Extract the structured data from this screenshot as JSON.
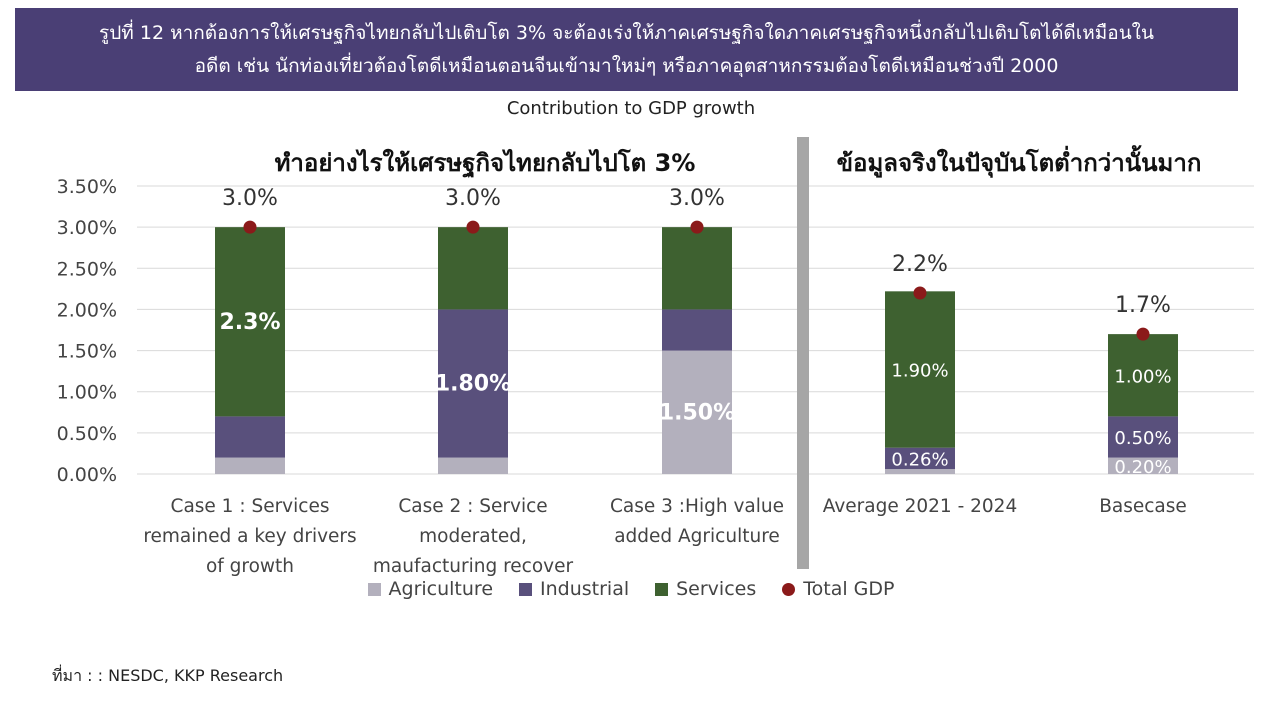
{
  "header": {
    "line1": "รูปที่ 12 หากต้องการให้เศรษฐกิจไทยกลับไปเติบโต 3% จะต้องเร่งให้ภาคเศรษฐกิจใดภาคเศรษฐกิจหนึ่งกลับไปเติบโตได้ดีเหมือนใน",
    "line2": "อดีต เช่น นักท่องเที่ยวต้องโตดีเหมือนตอนจีนเข้ามาใหม่ๆ หรือภาคอุตสาหกรรมต้องโตดีเหมือนช่วงปี 2000",
    "bg_color": "#4a3f75"
  },
  "source": "ที่มา : : NESDC, KKP Research",
  "chart_data": {
    "type": "bar",
    "stacked": true,
    "title": "Contribution to GDP growth",
    "panel_titles": {
      "left": "ทำอย่างไรให้เศรษฐกิจไทยกลับไปโต 3%",
      "right": "ข้อมูลจริงในปัจุบันโตต่ำกว่านั้นมาก"
    },
    "categories": [
      [
        "Case 1 : Services",
        "remained a key drivers",
        "of growth"
      ],
      [
        "Case 2 : Service",
        "moderated,",
        "maufacturing recover"
      ],
      [
        "Case 3 :High value",
        "added Agriculture"
      ],
      [
        "Average 2021 - 2024"
      ],
      [
        "Basecase"
      ]
    ],
    "series": [
      {
        "name": "Agriculture",
        "color": "#b3b0bd",
        "values": [
          0.2,
          0.2,
          1.5,
          0.06,
          0.2
        ]
      },
      {
        "name": "Industrial",
        "color": "#59507c",
        "values": [
          0.5,
          1.8,
          0.5,
          0.26,
          0.5
        ]
      },
      {
        "name": "Services",
        "color": "#3e6130",
        "values": [
          2.3,
          1.0,
          1.0,
          1.9,
          1.0
        ]
      }
    ],
    "total_gdp": {
      "name": "Total GDP",
      "color": "#8b1a1a",
      "values": [
        3.0,
        3.0,
        3.0,
        2.2,
        1.7
      ]
    },
    "total_labels": [
      "3.0%",
      "3.0%",
      "3.0%",
      "2.2%",
      "1.7%"
    ],
    "bar_labels": [
      {
        "bar": 0,
        "series": 2,
        "text": "2.3%",
        "bold": true
      },
      {
        "bar": 1,
        "series": 1,
        "text": "1.80%",
        "bold": true
      },
      {
        "bar": 2,
        "series": 0,
        "text": "1.50%",
        "bold": true
      },
      {
        "bar": 3,
        "series": 2,
        "text": "1.90%",
        "bold": false
      },
      {
        "bar": 3,
        "series": 1,
        "text": "0.26%",
        "bold": false
      },
      {
        "bar": 4,
        "series": 2,
        "text": "1.00%",
        "bold": false
      },
      {
        "bar": 4,
        "series": 1,
        "text": "0.50%",
        "bold": false
      },
      {
        "bar": 4,
        "series": 0,
        "text": "0.20%",
        "bold": false
      }
    ],
    "yticks": [
      "0.00%",
      "0.50%",
      "1.00%",
      "1.50%",
      "2.00%",
      "2.50%",
      "3.00%",
      "3.50%"
    ],
    "ylim": [
      0,
      3.5
    ],
    "grid": true,
    "legend_position": "bottom"
  }
}
